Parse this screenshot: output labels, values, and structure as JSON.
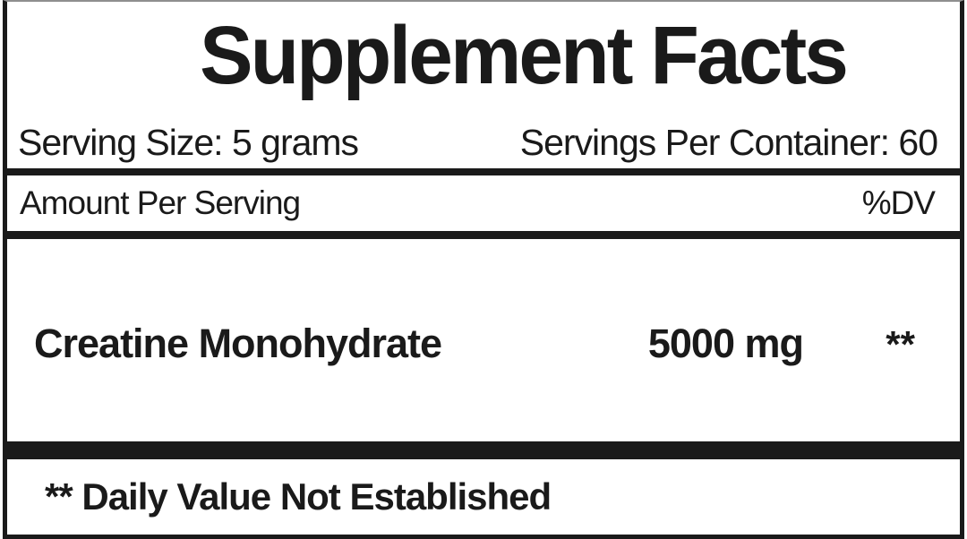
{
  "label": {
    "title": "Supplement Facts",
    "serving_size": "Serving Size: 5 grams",
    "servings_per_container": "Servings Per Container: 60",
    "amount_header": "Amount Per Serving",
    "dv_header": "%DV",
    "ingredients": [
      {
        "name": "Creatine Monohydrate",
        "amount": "5000 mg",
        "dv": "**"
      }
    ],
    "footnote": "** Daily Value Not Established",
    "colors": {
      "ink": "#1a1a1a",
      "background": "#ffffff"
    }
  }
}
